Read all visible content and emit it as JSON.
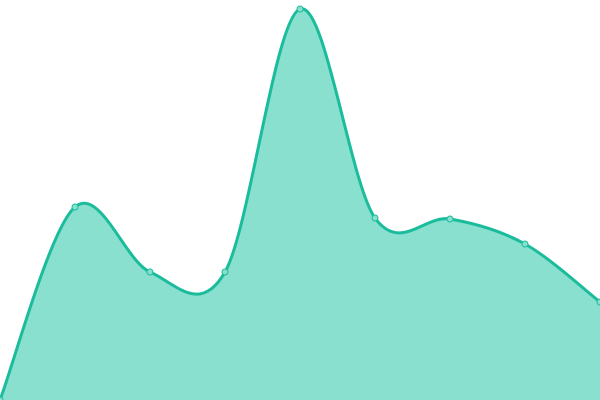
{
  "chart_data": {
    "type": "area",
    "title": "",
    "xlabel": "",
    "ylabel": "",
    "x": [
      0,
      1,
      2,
      3,
      4,
      5,
      6,
      7,
      8
    ],
    "values": [
      0,
      193,
      128,
      128,
      391,
      182,
      181,
      156,
      98
    ],
    "ylim": [
      0,
      400
    ],
    "grid": false,
    "smooth": true,
    "show_markers": true,
    "colors": {
      "line": "#1abc9c",
      "fill": "#89e0cf",
      "marker": "#89e0cf"
    }
  }
}
